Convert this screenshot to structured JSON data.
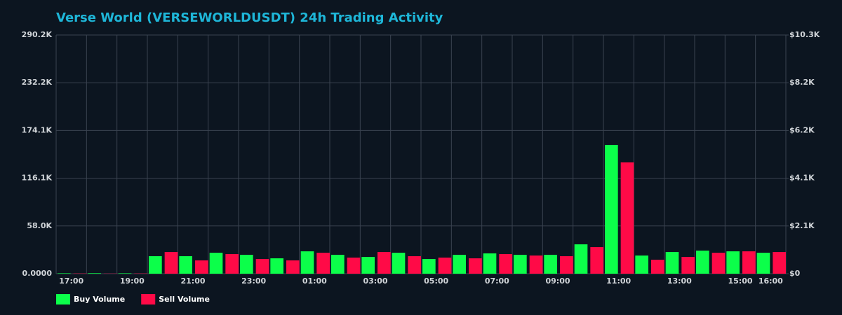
{
  "chart_data": {
    "type": "bar",
    "title": "Verse World (VERSEWORLDUSDT) 24h Trading Activity",
    "categories": [
      "17:00",
      null,
      "19:00",
      null,
      "21:00",
      null,
      "23:00",
      null,
      "01:00",
      null,
      "03:00",
      null,
      "05:00",
      null,
      "07:00",
      null,
      "09:00",
      null,
      "11:00",
      null,
      "13:00",
      null,
      "15:00",
      "16:00"
    ],
    "series": [
      {
        "name": "Buy Volume",
        "color": "#0cff4a",
        "values": [
          500,
          600,
          500,
          21300,
          21300,
          25500,
          23000,
          18700,
          27200,
          23000,
          20400,
          25500,
          17900,
          23000,
          24700,
          23000,
          23000,
          35700,
          156600,
          22100,
          26400,
          28100,
          27200,
          25500
        ]
      },
      {
        "name": "Sell Volume",
        "color": "#ff0a47",
        "values": [
          300,
          200,
          300,
          26400,
          16200,
          23800,
          17900,
          16200,
          25500,
          19600,
          26400,
          21300,
          19600,
          18700,
          23800,
          22100,
          21300,
          32300,
          135300,
          17000,
          20400,
          25500,
          27200,
          26400
        ]
      }
    ],
    "ylim": [
      0,
      290200
    ],
    "yticks": [
      {
        "value": 0,
        "label": "0.0000"
      },
      {
        "value": 58040,
        "label": "58.0K"
      },
      {
        "value": 116080,
        "label": "116.1K"
      },
      {
        "value": 174120,
        "label": "174.1K"
      },
      {
        "value": 232160,
        "label": "232.2K"
      },
      {
        "value": 290200,
        "label": "290.2K"
      }
    ],
    "y2lim": [
      0,
      10300
    ],
    "y2ticks": [
      {
        "value": 0,
        "label": "$0"
      },
      {
        "value": 2060,
        "label": "$2.1K"
      },
      {
        "value": 4120,
        "label": "$4.1K"
      },
      {
        "value": 6180,
        "label": "$6.2K"
      },
      {
        "value": 8240,
        "label": "$8.2K"
      },
      {
        "value": 10300,
        "label": "$10.3K"
      }
    ],
    "grid": true
  }
}
